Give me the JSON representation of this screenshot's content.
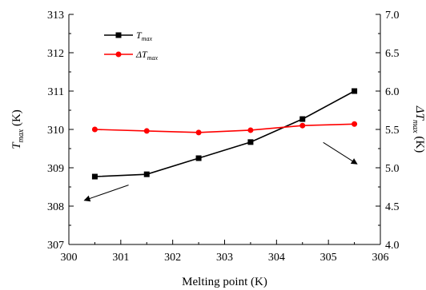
{
  "chart_data": {
    "type": "line",
    "xlabel": "Melting point (K)",
    "ylabel_left": {
      "main": "T",
      "sub": "max",
      "unit": " (K)"
    },
    "ylabel_right": {
      "main": "ΔT",
      "sub": "max",
      "unit": " (K)"
    },
    "xlim": [
      300,
      306
    ],
    "ylim_left": [
      307,
      313
    ],
    "ylim_right": [
      4.0,
      7.0
    ],
    "x_ticks": [
      "300",
      "301",
      "302",
      "303",
      "304",
      "305",
      "306"
    ],
    "y_left_ticks": [
      "307",
      "308",
      "309",
      "310",
      "311",
      "312",
      "313"
    ],
    "y_right_ticks": [
      "4.0",
      "4.5",
      "5.0",
      "5.5",
      "6.0",
      "6.5",
      "7.0"
    ],
    "grid": false,
    "legend_position": "top-left",
    "series": [
      {
        "name": "T_max",
        "legend": {
          "main": "T",
          "sub": "max"
        },
        "axis": "left",
        "color": "#000000",
        "marker": "square",
        "x": [
          300.5,
          301.5,
          302.5,
          303.5,
          304.5,
          305.5
        ],
        "y": [
          308.77,
          308.83,
          309.25,
          309.67,
          310.27,
          311.0
        ]
      },
      {
        "name": "ΔT_max",
        "legend": {
          "main": "ΔT",
          "sub": "max"
        },
        "axis": "right",
        "color": "#ff0000",
        "marker": "circle",
        "x": [
          300.5,
          301.5,
          302.5,
          303.5,
          304.5,
          305.5
        ],
        "y": [
          5.5,
          5.48,
          5.46,
          5.49,
          5.55,
          5.57
        ]
      }
    ],
    "annotations": [
      {
        "type": "arrow",
        "target_axis": "left",
        "from": [
          301.15,
          308.55
        ],
        "to": [
          300.3,
          308.15
        ]
      },
      {
        "type": "arrow",
        "target_axis": "right",
        "from": [
          304.9,
          5.33
        ],
        "to": [
          305.55,
          5.05
        ]
      }
    ]
  }
}
